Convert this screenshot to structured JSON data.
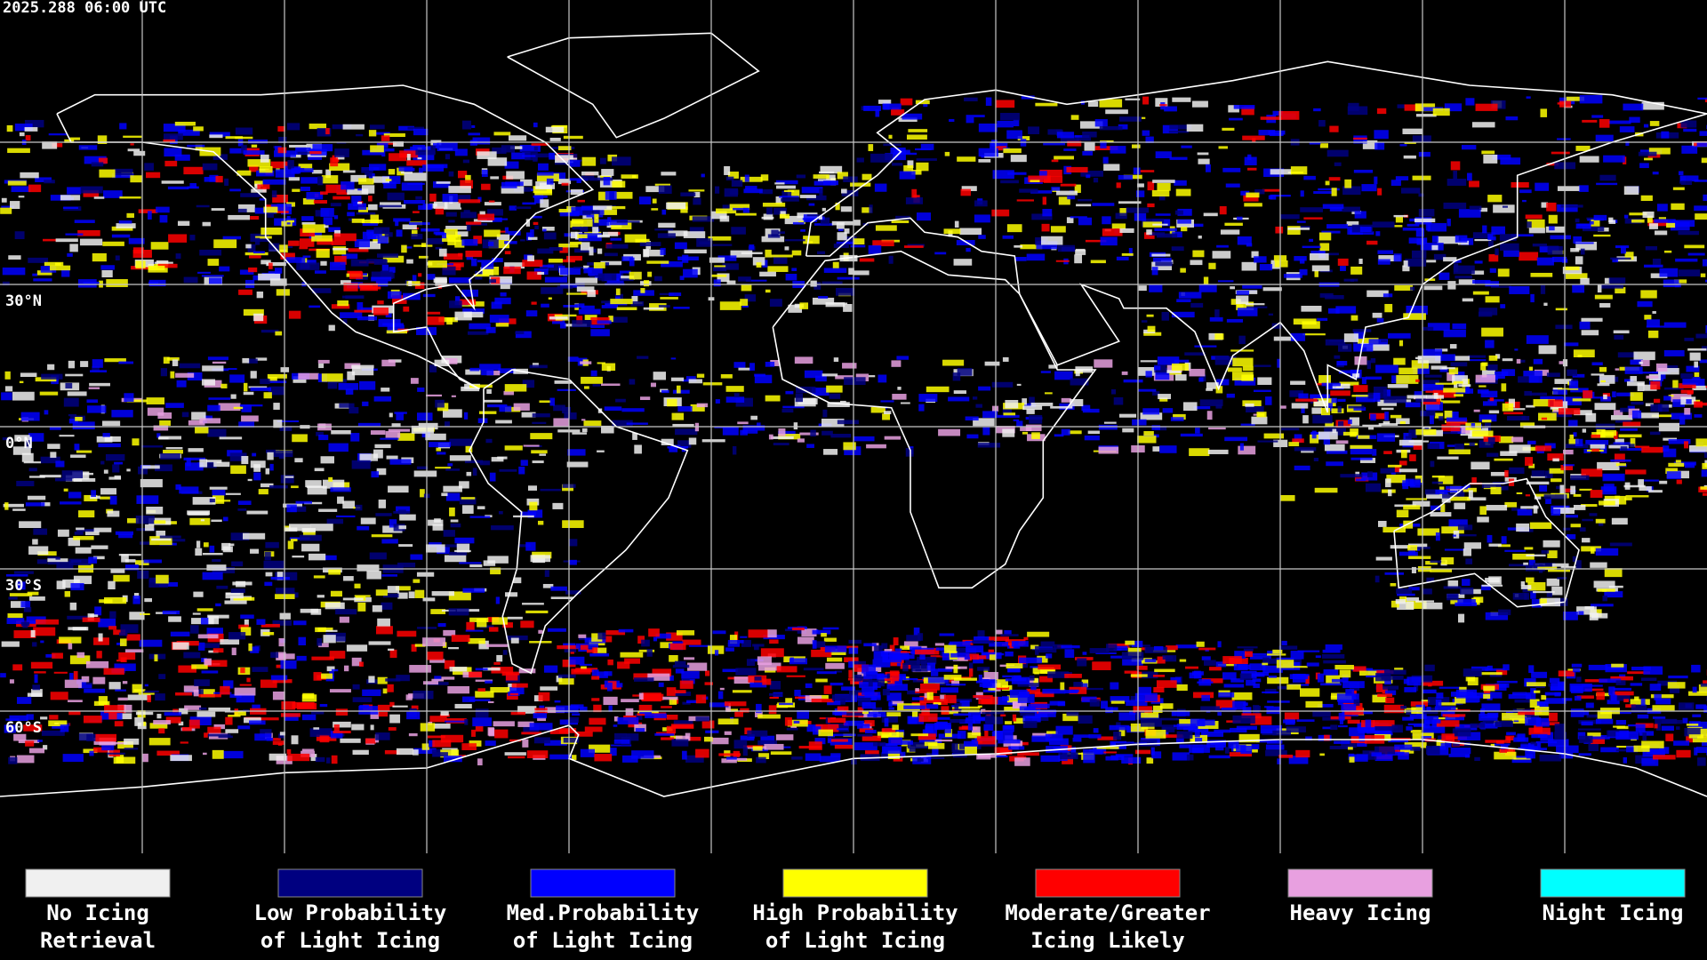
{
  "header": {
    "timestamp": "2025.288 06:00 UTC"
  },
  "map": {
    "latitude_labels": [
      "30°N",
      "0°N",
      "30°S",
      "60°S"
    ]
  },
  "legend": {
    "items": [
      {
        "color": "#f0f0f0",
        "lines": [
          "No Icing",
          "Retrieval"
        ]
      },
      {
        "color": "#000080",
        "lines": [
          "Low Probability",
          "of Light Icing"
        ]
      },
      {
        "color": "#0000ff",
        "lines": [
          "Med.Probability",
          "of Light Icing"
        ]
      },
      {
        "color": "#ffff00",
        "lines": [
          "High Probability",
          "of Light Icing"
        ]
      },
      {
        "color": "#ff0000",
        "lines": [
          "Moderate/Greater",
          "Icing Likely"
        ]
      },
      {
        "color": "#e8a0e0",
        "lines": [
          "Heavy Icing"
        ]
      },
      {
        "color": "#00ffff",
        "lines": [
          "Night Icing"
        ]
      }
    ]
  }
}
